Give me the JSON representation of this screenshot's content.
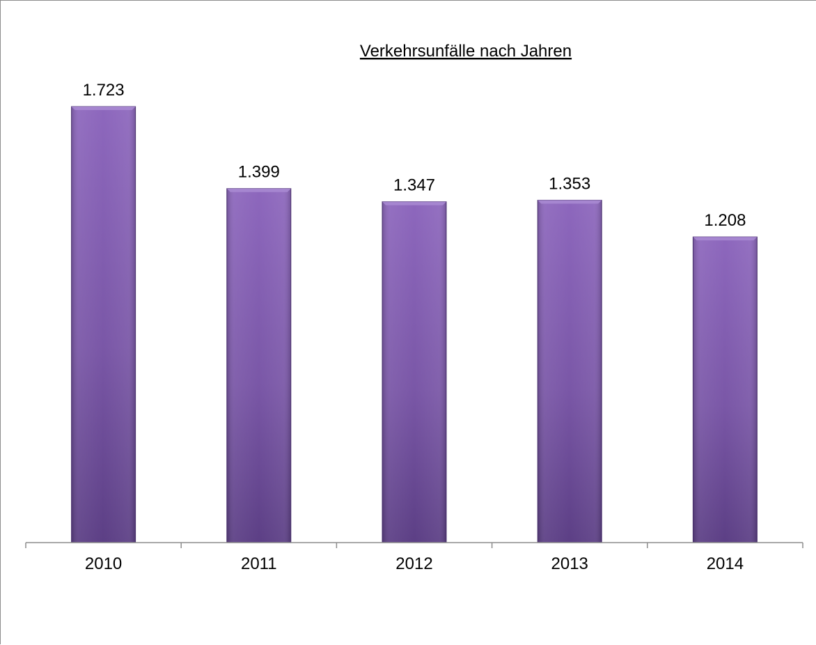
{
  "chart_data": {
    "type": "bar",
    "title": "Verkehrsunfälle nach Jahren",
    "categories": [
      "2010",
      "2011",
      "2012",
      "2013",
      "2014"
    ],
    "values": [
      1723,
      1399,
      1347,
      1353,
      1208
    ],
    "data_labels": [
      "1.723",
      "1.399",
      "1.347",
      "1.353",
      "1.208"
    ],
    "xlabel": "",
    "ylabel": "",
    "ylim": [
      0,
      1800
    ],
    "grid": false,
    "legend": "none",
    "colors": {
      "bar_top": "#8d67bd",
      "bar_mid": "#7a57a7",
      "bar_bottom": "#5c3f85",
      "bar_edge": "#4e3474",
      "axis": "#8c8c8c"
    }
  }
}
